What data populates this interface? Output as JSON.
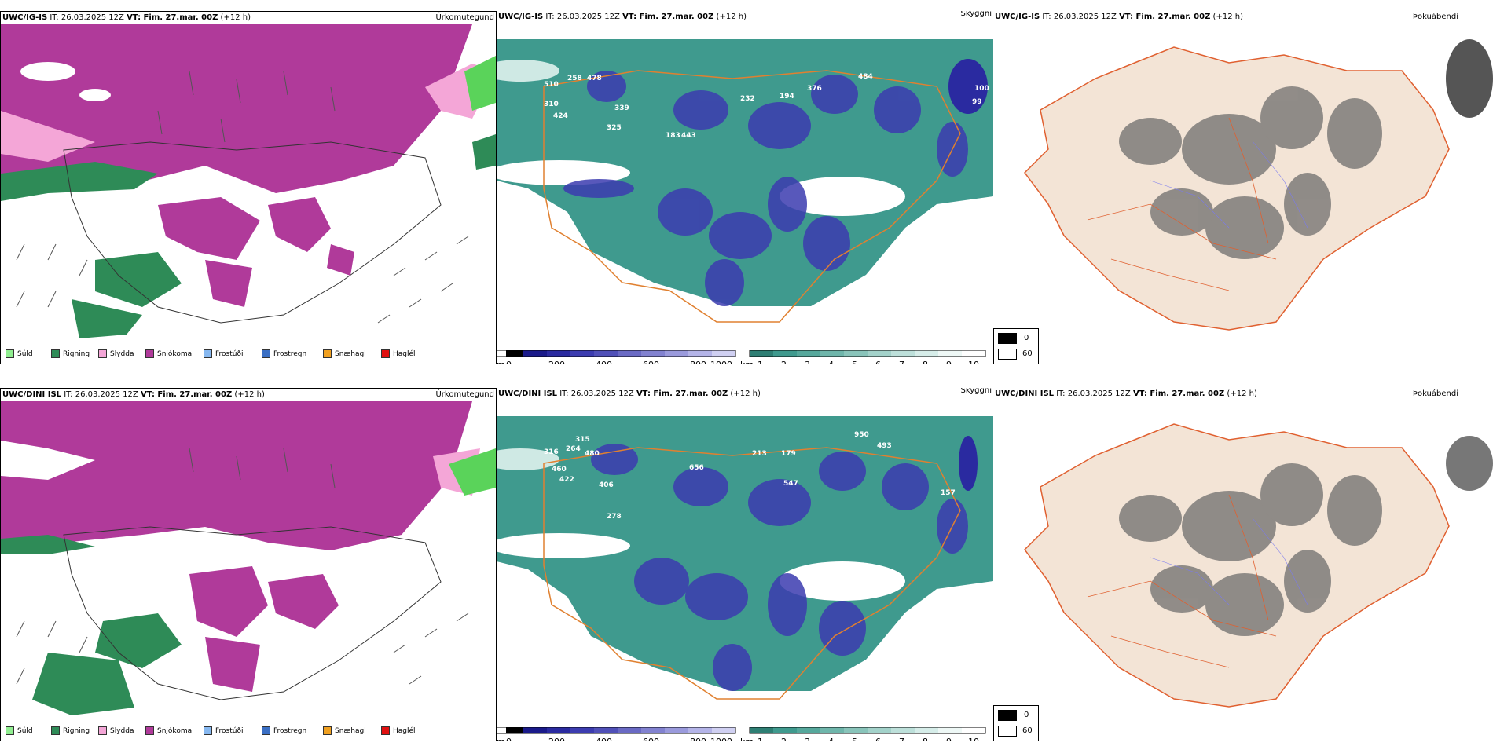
{
  "panels": [
    {
      "title_model": "UWC/IG-IS",
      "title_it": "IT: 26.03.2025 12Z",
      "title_vt": "VT: Fim. 27.mar. 00Z",
      "title_plus": "(+12 h)",
      "right_label": "Úrkomutegund"
    },
    {
      "title_model": "UWC/IG-IS",
      "title_it": "IT: 26.03.2025 12Z",
      "title_vt": "VT: Fim. 27.mar. 00Z",
      "title_plus": "(+12 h)",
      "right_label": "Skyggni"
    },
    {
      "title_model": "UWC/IG-IS",
      "title_it": "IT: 26.03.2025 12Z",
      "title_vt": "VT: Fim. 27.mar. 00Z",
      "title_plus": "(+12 h)",
      "right_label": "Þokuábendi"
    },
    {
      "title_model": "UWC/DINI ISL",
      "title_it": "IT: 26.03.2025 12Z",
      "title_vt": "VT: Fim. 27.mar. 00Z",
      "title_plus": "(+12 h)",
      "right_label": "Úrkomutegund"
    },
    {
      "title_model": "UWC/DINI ISL",
      "title_it": "IT: 26.03.2025 12Z",
      "title_vt": "VT: Fim. 27.mar. 00Z",
      "title_plus": "(+12 h)",
      "right_label": "Skyggni"
    },
    {
      "title_model": "UWC/DINI ISL",
      "title_it": "IT: 26.03.2025 12Z",
      "title_vt": "VT: Fim. 27.mar. 00Z",
      "title_plus": "(+12 h)",
      "right_label": "Þokuábendi"
    }
  ],
  "precip_legend": [
    {
      "label": "Súld",
      "color": "#90ee90"
    },
    {
      "label": "Rigning",
      "color": "#2e8b57"
    },
    {
      "label": "Slydda",
      "color": "#f4a6d7"
    },
    {
      "label": "Snjókoma",
      "color": "#b03a9a"
    },
    {
      "label": "Frostúði",
      "color": "#87b8f0"
    },
    {
      "label": "Frostregn",
      "color": "#3a6fc4"
    },
    {
      "label": "Snæhagl",
      "color": "#f0a020"
    },
    {
      "label": "Haglél",
      "color": "#e01010"
    }
  ],
  "elev_bar": {
    "unit": "m",
    "ticks": [
      "0",
      "200",
      "400",
      "600",
      "800",
      "1000"
    ]
  },
  "vis_bar": {
    "unit": "km",
    "ticks": [
      "1",
      "2",
      "3",
      "4",
      "5",
      "6",
      "7",
      "8",
      "9",
      "10"
    ]
  },
  "fog_legend": {
    "values": [
      "0",
      "60"
    ]
  },
  "colors": {
    "sea_teal": "#3f9a8e",
    "snow": "#b03a9a",
    "rain": "#2e8b57",
    "sleet": "#f4a6d7",
    "fog_land": "#f3e4d6",
    "roads": "#e06030"
  },
  "map_labels": {
    "top": [
      "510",
      "258",
      "478",
      "310",
      "424",
      "339",
      "325",
      "183",
      "443",
      "232",
      "194",
      "376",
      "484",
      "100",
      "99"
    ],
    "bottom": [
      "315",
      "316",
      "264",
      "480",
      "460",
      "422",
      "406",
      "656",
      "213",
      "179",
      "950",
      "493",
      "278",
      "547",
      "157"
    ]
  }
}
